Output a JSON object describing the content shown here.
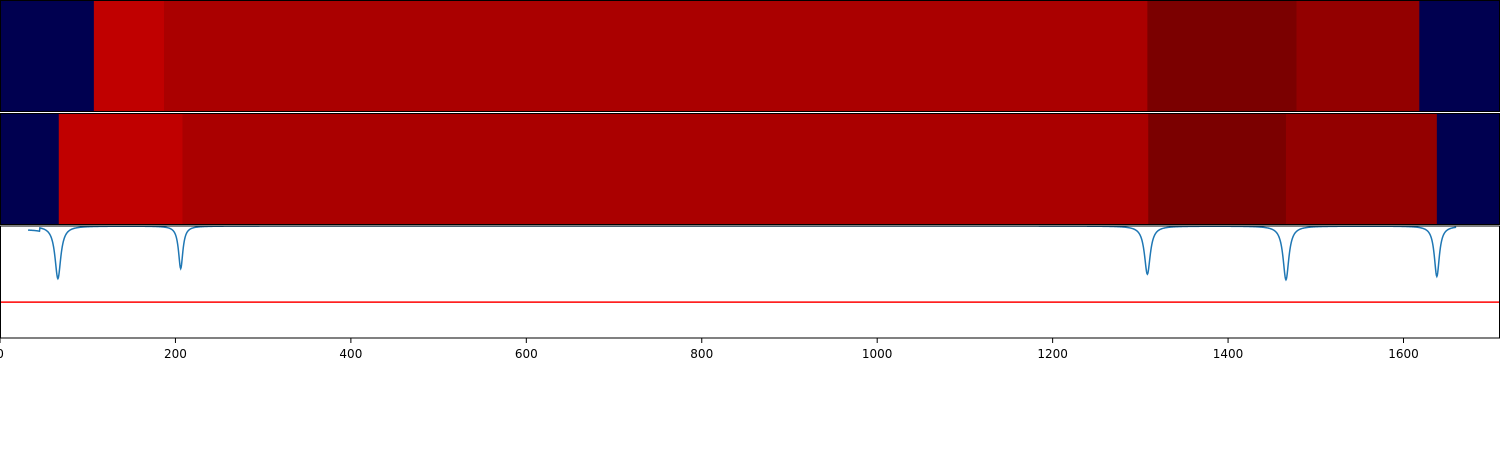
{
  "chart_data": {
    "type": "heatmap",
    "xlim": [
      0,
      1710
    ],
    "xticks": [
      0,
      200,
      400,
      600,
      800,
      1000,
      1200,
      1400,
      1600
    ],
    "xtick_labels": [
      "0",
      "200",
      "400",
      "600",
      "800",
      "1000",
      "1200",
      "1400",
      "1600"
    ],
    "grid": false,
    "legend": "none",
    "colors": {
      "navy": "#000050",
      "bright_red": "#c00000",
      "red": "#aa0000",
      "dark_red": "#7b0000",
      "mid_dark_red": "#930000",
      "signal_line": "#1f77b4",
      "threshold_line": "#ff0000",
      "divider": "#ffffff",
      "frame": "#000000"
    },
    "heatmap_rows": [
      {
        "segments": [
          {
            "start": 0,
            "end": 107,
            "color": "#000050"
          },
          {
            "start": 107,
            "end": 187,
            "color": "#c00000"
          },
          {
            "start": 187,
            "end": 1308,
            "color": "#aa0000"
          },
          {
            "start": 1308,
            "end": 1478,
            "color": "#7b0000"
          },
          {
            "start": 1478,
            "end": 1618,
            "color": "#930000"
          },
          {
            "start": 1618,
            "end": 1710,
            "color": "#000050"
          }
        ]
      },
      {
        "segments": [
          {
            "start": 0,
            "end": 67,
            "color": "#000050"
          },
          {
            "start": 67,
            "end": 208,
            "color": "#c00000"
          },
          {
            "start": 208,
            "end": 1309,
            "color": "#aa0000"
          },
          {
            "start": 1309,
            "end": 1466,
            "color": "#7b0000"
          },
          {
            "start": 1466,
            "end": 1638,
            "color": "#930000"
          },
          {
            "start": 1638,
            "end": 1710,
            "color": "#000050"
          }
        ]
      }
    ],
    "signal": {
      "ylim": [
        0,
        1
      ],
      "baseline": 1.0,
      "flat_start": 32,
      "flat_end": 1660,
      "shoulder": {
        "start": 25,
        "end": 45,
        "value": 0.97
      },
      "dips": [
        {
          "x": 66,
          "y": 0.53,
          "width": 4
        },
        {
          "x": 206,
          "y": 0.62,
          "width": 3
        },
        {
          "x": 1308,
          "y": 0.57,
          "width": 4
        },
        {
          "x": 1466,
          "y": 0.52,
          "width": 4
        },
        {
          "x": 1638,
          "y": 0.55,
          "width": 3.5
        }
      ],
      "threshold": 0.32
    }
  }
}
